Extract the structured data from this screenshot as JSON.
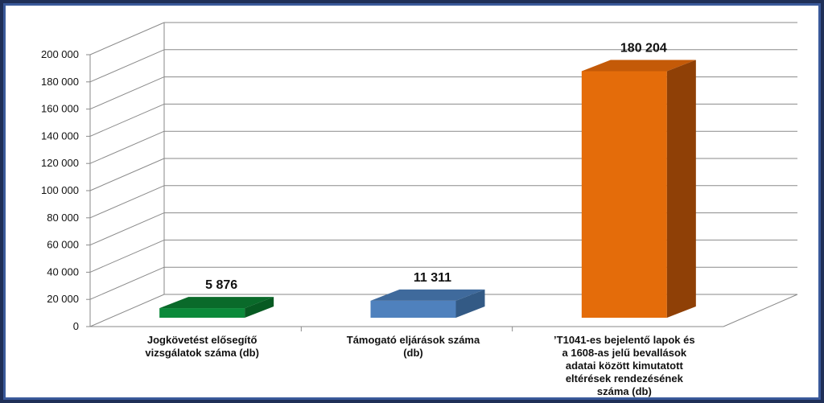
{
  "chart_data": {
    "type": "bar",
    "title": "",
    "xlabel": "",
    "ylabel": "",
    "ylim": [
      0,
      200000
    ],
    "yticks": [
      0,
      20000,
      40000,
      60000,
      80000,
      100000,
      120000,
      140000,
      160000,
      180000,
      200000
    ],
    "ytick_labels": [
      "0",
      "20 000",
      "40 000",
      "60 000",
      "80 000",
      "100 000",
      "120 000",
      "140 000",
      "160 000",
      "180 000",
      "200 000"
    ],
    "grid": true,
    "style": "3d",
    "categories": [
      [
        "Jogkövetést elősegítő",
        "vizsgálatok száma (db)"
      ],
      [
        "Támogató eljárások száma",
        "(db)"
      ],
      [
        "’T1041-es bejelentő lapok és",
        "a 1608-as jelű bevallások",
        "adatai között kimutatott",
        "eltérések rendezésének",
        "száma (db)"
      ]
    ],
    "values": [
      5876,
      11311,
      180204
    ],
    "data_labels": [
      "5 876",
      "11 311",
      "180 204"
    ],
    "colors": [
      {
        "front": "#0b8a3a",
        "top": "#0a6a2a",
        "side": "#075a22"
      },
      {
        "front": "#4f81bd",
        "top": "#3f6a9c",
        "side": "#335a85"
      },
      {
        "front": "#e46c0a",
        "top": "#c45a08",
        "side": "#8f4006"
      }
    ]
  }
}
